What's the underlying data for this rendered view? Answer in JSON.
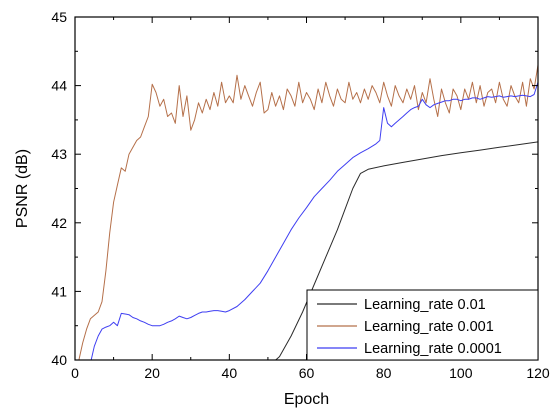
{
  "chart_data": {
    "type": "line",
    "xlabel": "Epoch",
    "ylabel": "PSNR (dB)",
    "xlim": [
      0,
      120
    ],
    "ylim": [
      40,
      45
    ],
    "xticks": [
      0,
      20,
      40,
      60,
      80,
      100,
      120
    ],
    "yticks": [
      40,
      41,
      42,
      43,
      44,
      45
    ],
    "grid": false,
    "legend_position": "bottom-right",
    "series": [
      {
        "name": "Learning_rate 0.01",
        "color": "#2b2b2b",
        "x": [
          50,
          53,
          56,
          59,
          62,
          65,
          68,
          70,
          72,
          74,
          76,
          80,
          85,
          90,
          95,
          100,
          105,
          110,
          115,
          120
        ],
        "y": [
          39.9,
          40.05,
          40.35,
          40.7,
          41.1,
          41.5,
          41.9,
          42.2,
          42.5,
          42.72,
          42.78,
          42.83,
          42.88,
          42.93,
          42.98,
          43.02,
          43.06,
          43.1,
          43.14,
          43.18
        ]
      },
      {
        "name": "Learning_rate 0.001",
        "color": "#b5704a",
        "x": [
          1,
          2,
          3,
          4,
          5,
          6,
          7,
          8,
          9,
          10,
          11,
          12,
          13,
          14,
          15,
          16,
          17,
          18,
          19,
          20,
          21,
          22,
          23,
          24,
          25,
          26,
          27,
          28,
          29,
          30,
          31,
          32,
          33,
          34,
          35,
          36,
          37,
          38,
          39,
          40,
          41,
          42,
          43,
          44,
          45,
          46,
          47,
          48,
          49,
          50,
          51,
          52,
          53,
          54,
          55,
          56,
          57,
          58,
          59,
          60,
          61,
          62,
          63,
          64,
          65,
          66,
          67,
          68,
          69,
          70,
          71,
          72,
          73,
          74,
          75,
          76,
          77,
          78,
          79,
          80,
          81,
          82,
          83,
          84,
          85,
          86,
          87,
          88,
          89,
          90,
          91,
          92,
          93,
          94,
          95,
          96,
          97,
          98,
          99,
          100,
          101,
          102,
          103,
          104,
          105,
          106,
          107,
          108,
          109,
          110,
          111,
          112,
          113,
          114,
          115,
          116,
          117,
          118,
          119,
          120
        ],
        "y": [
          40.0,
          40.25,
          40.45,
          40.6,
          40.65,
          40.7,
          40.85,
          41.3,
          41.85,
          42.3,
          42.55,
          42.8,
          42.75,
          43.0,
          43.1,
          43.2,
          43.25,
          43.4,
          43.55,
          44.02,
          43.9,
          43.7,
          43.8,
          43.55,
          43.6,
          43.45,
          44.0,
          43.55,
          43.85,
          43.35,
          43.5,
          43.75,
          43.6,
          43.8,
          43.65,
          43.9,
          43.7,
          44.05,
          43.75,
          43.85,
          43.75,
          44.15,
          43.8,
          44.0,
          43.85,
          43.7,
          43.9,
          44.05,
          43.6,
          43.65,
          43.9,
          43.7,
          43.85,
          43.65,
          43.95,
          43.85,
          43.7,
          44.05,
          43.75,
          43.9,
          43.8,
          43.65,
          43.95,
          43.75,
          44.05,
          43.85,
          43.7,
          43.95,
          43.8,
          43.75,
          44.05,
          43.8,
          43.9,
          43.75,
          43.95,
          43.8,
          44.0,
          43.9,
          43.75,
          44.05,
          43.85,
          43.7,
          44.0,
          43.85,
          43.75,
          43.95,
          43.8,
          44.0,
          43.65,
          43.9,
          43.75,
          44.1,
          43.8,
          43.55,
          43.95,
          43.75,
          43.6,
          43.95,
          43.85,
          43.65,
          43.95,
          43.8,
          44.05,
          43.75,
          44.0,
          43.7,
          43.9,
          43.95,
          43.75,
          44.05,
          43.8,
          43.7,
          44.0,
          43.85,
          43.75,
          44.05,
          43.7,
          44.1,
          43.95,
          44.3
        ]
      },
      {
        "name": "Learning_rate 0.0001",
        "color": "#3f3ff2",
        "x": [
          4,
          5,
          6,
          7,
          8,
          9,
          10,
          11,
          12,
          13,
          14,
          15,
          16,
          17,
          18,
          19,
          20,
          21,
          22,
          23,
          24,
          25,
          26,
          27,
          28,
          29,
          30,
          31,
          32,
          33,
          34,
          35,
          36,
          37,
          38,
          39,
          40,
          42,
          44,
          46,
          48,
          50,
          52,
          54,
          56,
          58,
          60,
          62,
          64,
          66,
          68,
          70,
          72,
          74,
          76,
          78,
          79,
          80,
          81,
          82,
          83,
          84,
          85,
          86,
          87,
          88,
          89,
          90,
          91,
          92,
          93,
          94,
          95,
          96,
          97,
          98,
          99,
          100,
          101,
          102,
          103,
          104,
          105,
          106,
          107,
          108,
          109,
          110,
          111,
          112,
          113,
          114,
          115,
          116,
          117,
          118,
          119,
          120
        ],
        "y": [
          39.95,
          40.2,
          40.35,
          40.45,
          40.48,
          40.5,
          40.55,
          40.5,
          40.68,
          40.67,
          40.66,
          40.62,
          40.6,
          40.57,
          40.55,
          40.52,
          40.5,
          40.5,
          40.5,
          40.52,
          40.55,
          40.57,
          40.6,
          40.64,
          40.62,
          40.6,
          40.62,
          40.65,
          40.68,
          40.7,
          40.7,
          40.71,
          40.72,
          40.72,
          40.71,
          40.7,
          40.72,
          40.78,
          40.88,
          41.0,
          41.12,
          41.3,
          41.5,
          41.7,
          41.9,
          42.07,
          42.22,
          42.38,
          42.5,
          42.62,
          42.75,
          42.85,
          42.95,
          43.02,
          43.08,
          43.15,
          43.2,
          43.68,
          43.45,
          43.4,
          43.45,
          43.5,
          43.55,
          43.6,
          43.65,
          43.68,
          43.7,
          43.8,
          43.72,
          43.68,
          43.72,
          43.74,
          43.76,
          43.78,
          43.78,
          43.8,
          43.8,
          43.78,
          43.8,
          43.8,
          43.82,
          43.82,
          43.8,
          43.82,
          43.84,
          43.83,
          43.84,
          43.85,
          43.83,
          43.84,
          43.85,
          43.84,
          43.85,
          43.86,
          43.85,
          43.84,
          43.87,
          44.05
        ]
      }
    ]
  }
}
